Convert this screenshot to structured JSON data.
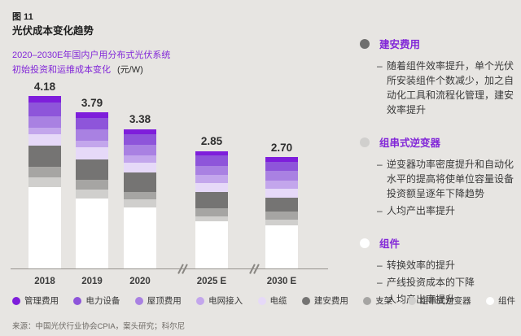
{
  "figure": {
    "label": "图 11",
    "title": "光伏成本变化趋势",
    "subtitle_line1": "2020–2030E年国内户用分布式光伏系统",
    "subtitle_line2": "初始投资和运维成本变化",
    "unit": "(元/W)",
    "source": "来源：中国光伏行业协会CPIA，案头研究；科尔尼"
  },
  "chart_data": {
    "type": "bar",
    "stacked": true,
    "unit": "元/W",
    "categories": [
      "2018",
      "2019",
      "2020",
      "2025 E",
      "2030 E"
    ],
    "totals": [
      4.18,
      3.79,
      3.38,
      2.85,
      2.7
    ],
    "total_labels": [
      "4.18",
      "3.79",
      "3.38",
      "2.85",
      "2.70"
    ],
    "series": [
      {
        "name": "管理费用",
        "color": "#7e1edb",
        "values": [
          0.15,
          0.13,
          0.12,
          0.1,
          0.11
        ]
      },
      {
        "name": "电力设备",
        "color": "#8e55da",
        "values": [
          0.33,
          0.28,
          0.26,
          0.26,
          0.23
        ]
      },
      {
        "name": "屋顶费用",
        "color": "#a981e2",
        "values": [
          0.29,
          0.27,
          0.25,
          0.23,
          0.23
        ]
      },
      {
        "name": "电网接入",
        "color": "#c3a6ec",
        "values": [
          0.16,
          0.17,
          0.18,
          0.2,
          0.2
        ]
      },
      {
        "name": "电缆",
        "color": "#e6d9f8",
        "values": [
          0.26,
          0.29,
          0.25,
          0.2,
          0.22
        ]
      },
      {
        "name": "建安费用",
        "color": "#757473",
        "values": [
          0.52,
          0.5,
          0.46,
          0.4,
          0.34
        ]
      },
      {
        "name": "支架",
        "color": "#a6a5a3",
        "values": [
          0.26,
          0.23,
          0.19,
          0.2,
          0.19
        ]
      },
      {
        "name": "组串式逆变器",
        "color": "#d0cfcd",
        "values": [
          0.23,
          0.23,
          0.2,
          0.13,
          0.13
        ]
      },
      {
        "name": "组件",
        "color": "#ffffff",
        "values": [
          1.98,
          1.69,
          1.47,
          1.13,
          1.05
        ]
      }
    ],
    "axis_breaks_between": [
      [
        "2020",
        "2025 E"
      ],
      [
        "2025 E",
        "2030 E"
      ]
    ],
    "legend_position": "bottom",
    "grid": false
  },
  "notes": {
    "sections": [
      {
        "bullet_color": "#6f6f6e",
        "heading": "建安费用",
        "items": [
          "随着组件效率提升，单个光伏所安装组件个数减少，加之自动化工具和流程化管理，建安效率提升"
        ]
      },
      {
        "bullet_color": "#d0cfcd",
        "heading": "组串式逆变器",
        "items": [
          "逆变器功率密度提升和自动化水平的提高将使单位容量设备投资额呈逐年下降趋势",
          "人均产出率提升"
        ]
      },
      {
        "bullet_color": "#ffffff",
        "heading": "组件",
        "items": [
          "转换效率的提升",
          "产线投资成本的下降",
          "人均产出率提升"
        ]
      }
    ]
  }
}
